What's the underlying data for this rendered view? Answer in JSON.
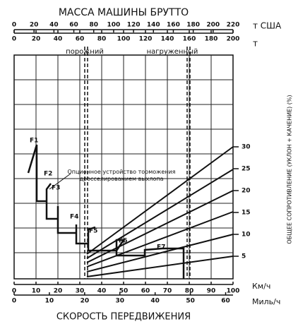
{
  "title": "МАССА МАШИНЫ БРУТТО",
  "weight_axes": [
    {
      "unit": "т США",
      "lim": [
        0,
        220
      ],
      "ticks": [
        0,
        20,
        40,
        60,
        80,
        100,
        120,
        140,
        160,
        180,
        200,
        220
      ]
    },
    {
      "unit": "т",
      "lim": [
        0,
        200
      ],
      "ticks": [
        0,
        20,
        40,
        60,
        80,
        100,
        120,
        140,
        160,
        180,
        200
      ]
    }
  ],
  "load_states": [
    "порожний",
    "нагруженный"
  ],
  "resistance_axis": {
    "label": "ОБЩЕЕ СОПРОТИВЛЕНИЕ (УКЛОН + КАЧЕНИЕ) (%)",
    "ticks": [
      30,
      25,
      20,
      15,
      10,
      5
    ]
  },
  "annotation": "Опционное устройство торможения дросселированием выхлопа",
  "gears": [
    "F1",
    "F2",
    "F3",
    "F4",
    "F5",
    "F6",
    "F7"
  ],
  "speed_axes": [
    {
      "unit": "Км/ч",
      "lim": [
        0,
        100
      ],
      "ticks": [
        0,
        10,
        20,
        30,
        40,
        50,
        60,
        70,
        80,
        90,
        100
      ]
    },
    {
      "unit": "Миль/ч",
      "lim": [
        0,
        62.1
      ],
      "ticks": [
        0,
        10,
        20,
        30,
        40,
        50,
        60
      ]
    }
  ],
  "x_label": "СКОРОСТЬ ПЕРЕДВИЖЕНИЯ"
}
